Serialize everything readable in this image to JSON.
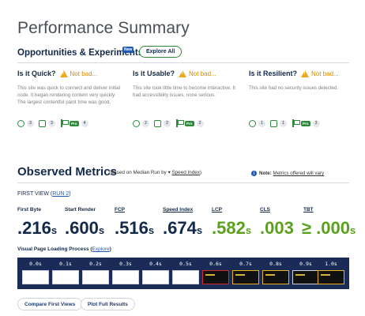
{
  "page_title": "Performance Summary",
  "opportunities": {
    "title": "Opportunities & Experiments",
    "badge": "New",
    "explore_label": "Explore All",
    "columns": [
      {
        "question": "Is it Quick?",
        "verdict": "Not bad...",
        "description": "This site was quick to connect and deliver initial code. It began rendering content very quickly. The largest contentful paint time was good.",
        "counts": [
          "3",
          "3",
          "4"
        ],
        "pro_label": "Pro"
      },
      {
        "question": "Is it Usable?",
        "verdict": "Not bad...",
        "description": "This site took little time to become interactive. It had accessibility issues, none serious.",
        "counts": [
          "2",
          "2",
          "2"
        ],
        "pro_label": "Pro"
      },
      {
        "question": "Is it Resilient?",
        "verdict": "Not bad...",
        "description": "This site had no security issues detected.",
        "counts": [
          "1",
          "1",
          "3"
        ],
        "pro_label": "Pro"
      }
    ]
  },
  "observed": {
    "title": "Observed Metrics",
    "subtitle_prefix": "(Based on Median Run by",
    "subtitle_link": "Speed Index",
    "subtitle_suffix": ")",
    "note_bold": "Note:",
    "note_text": "Metrics offered will vary",
    "first_view_label": "FIRST VIEW (",
    "first_view_link": "RUN 2",
    "first_view_close": ")",
    "metrics": [
      {
        "label": "First Byte",
        "value": ".216",
        "unit": "s"
      },
      {
        "label": "Start Render",
        "value": ".600",
        "unit": "s"
      },
      {
        "label": "FCP",
        "value": ".516",
        "unit": "s"
      },
      {
        "label": "Speed Index",
        "value": ".674",
        "unit": "s"
      },
      {
        "label": "LCP",
        "value": ".582",
        "unit": "s"
      },
      {
        "label": "CLS",
        "value": ".003",
        "unit": ""
      },
      {
        "label": "TBT",
        "value": "≥ .000",
        "unit": "s"
      }
    ]
  },
  "visual": {
    "label": "Visual Page Loading Process (",
    "link": "Explore",
    "close": ")",
    "frames": [
      "0.0s",
      "0.1s",
      "0.2s",
      "0.3s",
      "0.4s",
      "0.5s",
      "0.6s",
      "0.7s",
      "0.8s",
      "0.9s",
      "1.0s"
    ]
  },
  "buttons": {
    "compare": "Compare First Views",
    "plot": "Plot Full Results"
  },
  "colors": {
    "navy": "#12294a",
    "green_value": "#5aa01c",
    "warning": "#f0a81c",
    "filmstrip_bg": "#1b2b57"
  }
}
